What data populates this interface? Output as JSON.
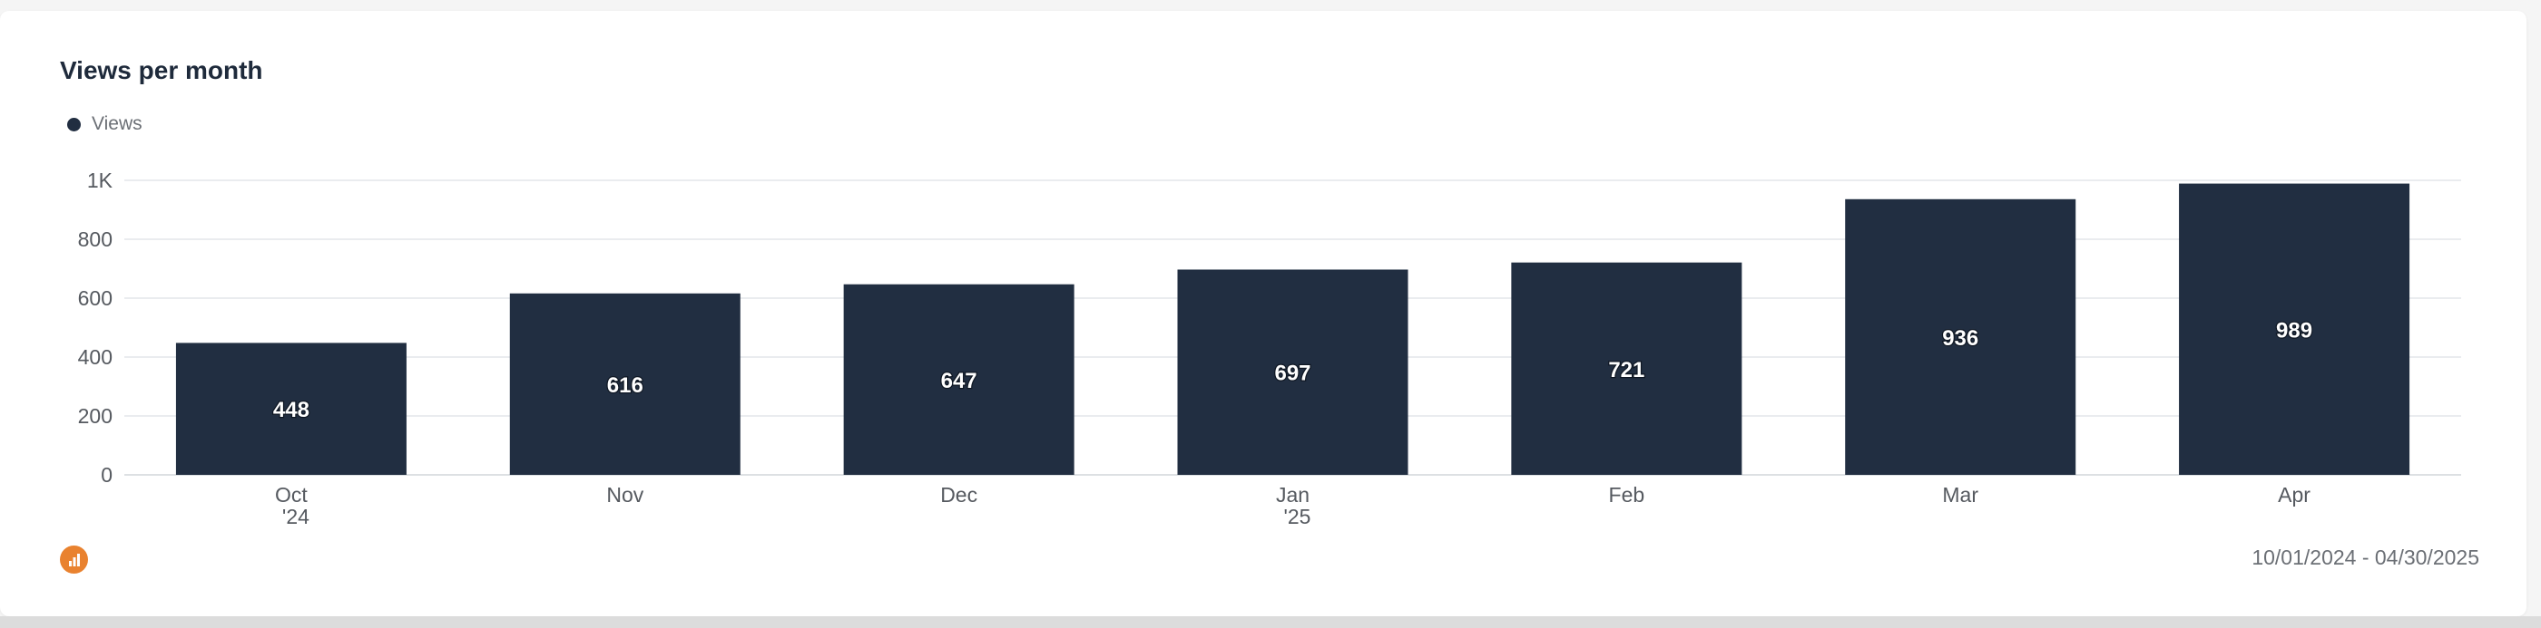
{
  "chart_data": {
    "type": "bar",
    "title": "Views per month",
    "series": [
      {
        "name": "Views",
        "color": "#212e41",
        "values": [
          448,
          616,
          647,
          697,
          721,
          936,
          989
        ]
      }
    ],
    "categories": [
      [
        "Oct",
        "'24"
      ],
      [
        "Nov"
      ],
      [
        "Dec"
      ],
      [
        "Jan",
        "'25"
      ],
      [
        "Feb"
      ],
      [
        "Mar"
      ],
      [
        "Apr"
      ]
    ],
    "y_ticks": [
      {
        "value": 0,
        "label": "0"
      },
      {
        "value": 200,
        "label": "200"
      },
      {
        "value": 400,
        "label": "400"
      },
      {
        "value": 600,
        "label": "600"
      },
      {
        "value": 800,
        "label": "800"
      },
      {
        "value": 1000,
        "label": "1K"
      }
    ],
    "ylim": [
      0,
      1000
    ],
    "grid": true,
    "legend_position": "top-left",
    "data_labels": true
  },
  "footer": {
    "date_range": "10/01/2024 - 04/30/2025",
    "icon": "bar-chart-icon",
    "icon_color": "#e9822f"
  }
}
